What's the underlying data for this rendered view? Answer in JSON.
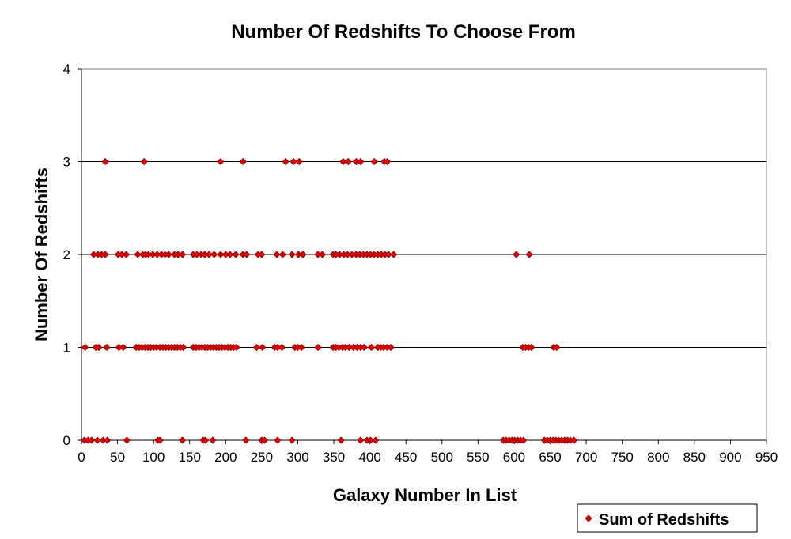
{
  "chart_data": {
    "type": "scatter",
    "title": "Number Of Redshifts To Choose From",
    "xlabel": "Galaxy Number In List",
    "ylabel": "Number Of Redshifts",
    "xlim": [
      0,
      950
    ],
    "ylim": [
      0,
      4
    ],
    "xticks": [
      0,
      50,
      100,
      150,
      200,
      250,
      300,
      350,
      400,
      450,
      500,
      550,
      600,
      650,
      700,
      750,
      800,
      850,
      900,
      950
    ],
    "yticks": [
      0,
      1,
      2,
      3,
      4
    ],
    "grid": "horizontal major",
    "legend_position": "bottom-right",
    "marker_color": "#e00000",
    "marker_edge_color": "#8b0000",
    "series": [
      {
        "name": "Sum of Redshifts",
        "points": [
          [
            33,
            3
          ],
          [
            87,
            3
          ],
          [
            193,
            3
          ],
          [
            224,
            3
          ],
          [
            283,
            3
          ],
          [
            294,
            3
          ],
          [
            302,
            3
          ],
          [
            363,
            3
          ],
          [
            370,
            3
          ],
          [
            381,
            3
          ],
          [
            387,
            3
          ],
          [
            406,
            3
          ],
          [
            420,
            3
          ],
          [
            424,
            3
          ],
          [
            17,
            2
          ],
          [
            23,
            2
          ],
          [
            28,
            2
          ],
          [
            33,
            2
          ],
          [
            51,
            2
          ],
          [
            56,
            2
          ],
          [
            62,
            2
          ],
          [
            78,
            2
          ],
          [
            85,
            2
          ],
          [
            89,
            2
          ],
          [
            93,
            2
          ],
          [
            99,
            2
          ],
          [
            105,
            2
          ],
          [
            111,
            2
          ],
          [
            116,
            2
          ],
          [
            121,
            2
          ],
          [
            129,
            2
          ],
          [
            134,
            2
          ],
          [
            140,
            2
          ],
          [
            155,
            2
          ],
          [
            160,
            2
          ],
          [
            166,
            2
          ],
          [
            171,
            2
          ],
          [
            177,
            2
          ],
          [
            184,
            2
          ],
          [
            193,
            2
          ],
          [
            200,
            2
          ],
          [
            206,
            2
          ],
          [
            214,
            2
          ],
          [
            224,
            2
          ],
          [
            229,
            2
          ],
          [
            245,
            2
          ],
          [
            250,
            2
          ],
          [
            271,
            2
          ],
          [
            279,
            2
          ],
          [
            292,
            2
          ],
          [
            301,
            2
          ],
          [
            307,
            2
          ],
          [
            328,
            2
          ],
          [
            334,
            2
          ],
          [
            349,
            2
          ],
          [
            353,
            2
          ],
          [
            358,
            2
          ],
          [
            364,
            2
          ],
          [
            369,
            2
          ],
          [
            375,
            2
          ],
          [
            381,
            2
          ],
          [
            386,
            2
          ],
          [
            391,
            2
          ],
          [
            396,
            2
          ],
          [
            401,
            2
          ],
          [
            406,
            2
          ],
          [
            411,
            2
          ],
          [
            416,
            2
          ],
          [
            421,
            2
          ],
          [
            426,
            2
          ],
          [
            433,
            2
          ],
          [
            603,
            2
          ],
          [
            621,
            2
          ],
          [
            5,
            1
          ],
          [
            20,
            1
          ],
          [
            24,
            1
          ],
          [
            35,
            1
          ],
          [
            52,
            1
          ],
          [
            58,
            1
          ],
          [
            76,
            1
          ],
          [
            80,
            1
          ],
          [
            84,
            1
          ],
          [
            88,
            1
          ],
          [
            92,
            1
          ],
          [
            96,
            1
          ],
          [
            100,
            1
          ],
          [
            104,
            1
          ],
          [
            109,
            1
          ],
          [
            113,
            1
          ],
          [
            117,
            1
          ],
          [
            121,
            1
          ],
          [
            125,
            1
          ],
          [
            129,
            1
          ],
          [
            133,
            1
          ],
          [
            137,
            1
          ],
          [
            141,
            1
          ],
          [
            155,
            1
          ],
          [
            159,
            1
          ],
          [
            163,
            1
          ],
          [
            167,
            1
          ],
          [
            171,
            1
          ],
          [
            175,
            1
          ],
          [
            179,
            1
          ],
          [
            183,
            1
          ],
          [
            187,
            1
          ],
          [
            191,
            1
          ],
          [
            195,
            1
          ],
          [
            199,
            1
          ],
          [
            203,
            1
          ],
          [
            207,
            1
          ],
          [
            211,
            1
          ],
          [
            215,
            1
          ],
          [
            243,
            1
          ],
          [
            251,
            1
          ],
          [
            268,
            1
          ],
          [
            272,
            1
          ],
          [
            278,
            1
          ],
          [
            296,
            1
          ],
          [
            300,
            1
          ],
          [
            305,
            1
          ],
          [
            328,
            1
          ],
          [
            349,
            1
          ],
          [
            353,
            1
          ],
          [
            357,
            1
          ],
          [
            362,
            1
          ],
          [
            366,
            1
          ],
          [
            371,
            1
          ],
          [
            377,
            1
          ],
          [
            382,
            1
          ],
          [
            387,
            1
          ],
          [
            392,
            1
          ],
          [
            402,
            1
          ],
          [
            411,
            1
          ],
          [
            415,
            1
          ],
          [
            419,
            1
          ],
          [
            424,
            1
          ],
          [
            429,
            1
          ],
          [
            612,
            1
          ],
          [
            616,
            1
          ],
          [
            620,
            1
          ],
          [
            624,
            1
          ],
          [
            655,
            1
          ],
          [
            659,
            1
          ],
          [
            4,
            0
          ],
          [
            9,
            0
          ],
          [
            14,
            0
          ],
          [
            22,
            0
          ],
          [
            30,
            0
          ],
          [
            36,
            0
          ],
          [
            63,
            0
          ],
          [
            106,
            0
          ],
          [
            109,
            0
          ],
          [
            140,
            0
          ],
          [
            169,
            0
          ],
          [
            172,
            0
          ],
          [
            182,
            0
          ],
          [
            228,
            0
          ],
          [
            250,
            0
          ],
          [
            254,
            0
          ],
          [
            272,
            0
          ],
          [
            292,
            0
          ],
          [
            360,
            0
          ],
          [
            387,
            0
          ],
          [
            396,
            0
          ],
          [
            401,
            0
          ],
          [
            408,
            0
          ],
          [
            585,
            0
          ],
          [
            589,
            0
          ],
          [
            593,
            0
          ],
          [
            597,
            0
          ],
          [
            601,
            0
          ],
          [
            605,
            0
          ],
          [
            609,
            0
          ],
          [
            613,
            0
          ],
          [
            642,
            0
          ],
          [
            646,
            0
          ],
          [
            650,
            0
          ],
          [
            654,
            0
          ],
          [
            658,
            0
          ],
          [
            662,
            0
          ],
          [
            666,
            0
          ],
          [
            670,
            0
          ],
          [
            674,
            0
          ],
          [
            678,
            0
          ],
          [
            683,
            0
          ]
        ]
      }
    ]
  }
}
